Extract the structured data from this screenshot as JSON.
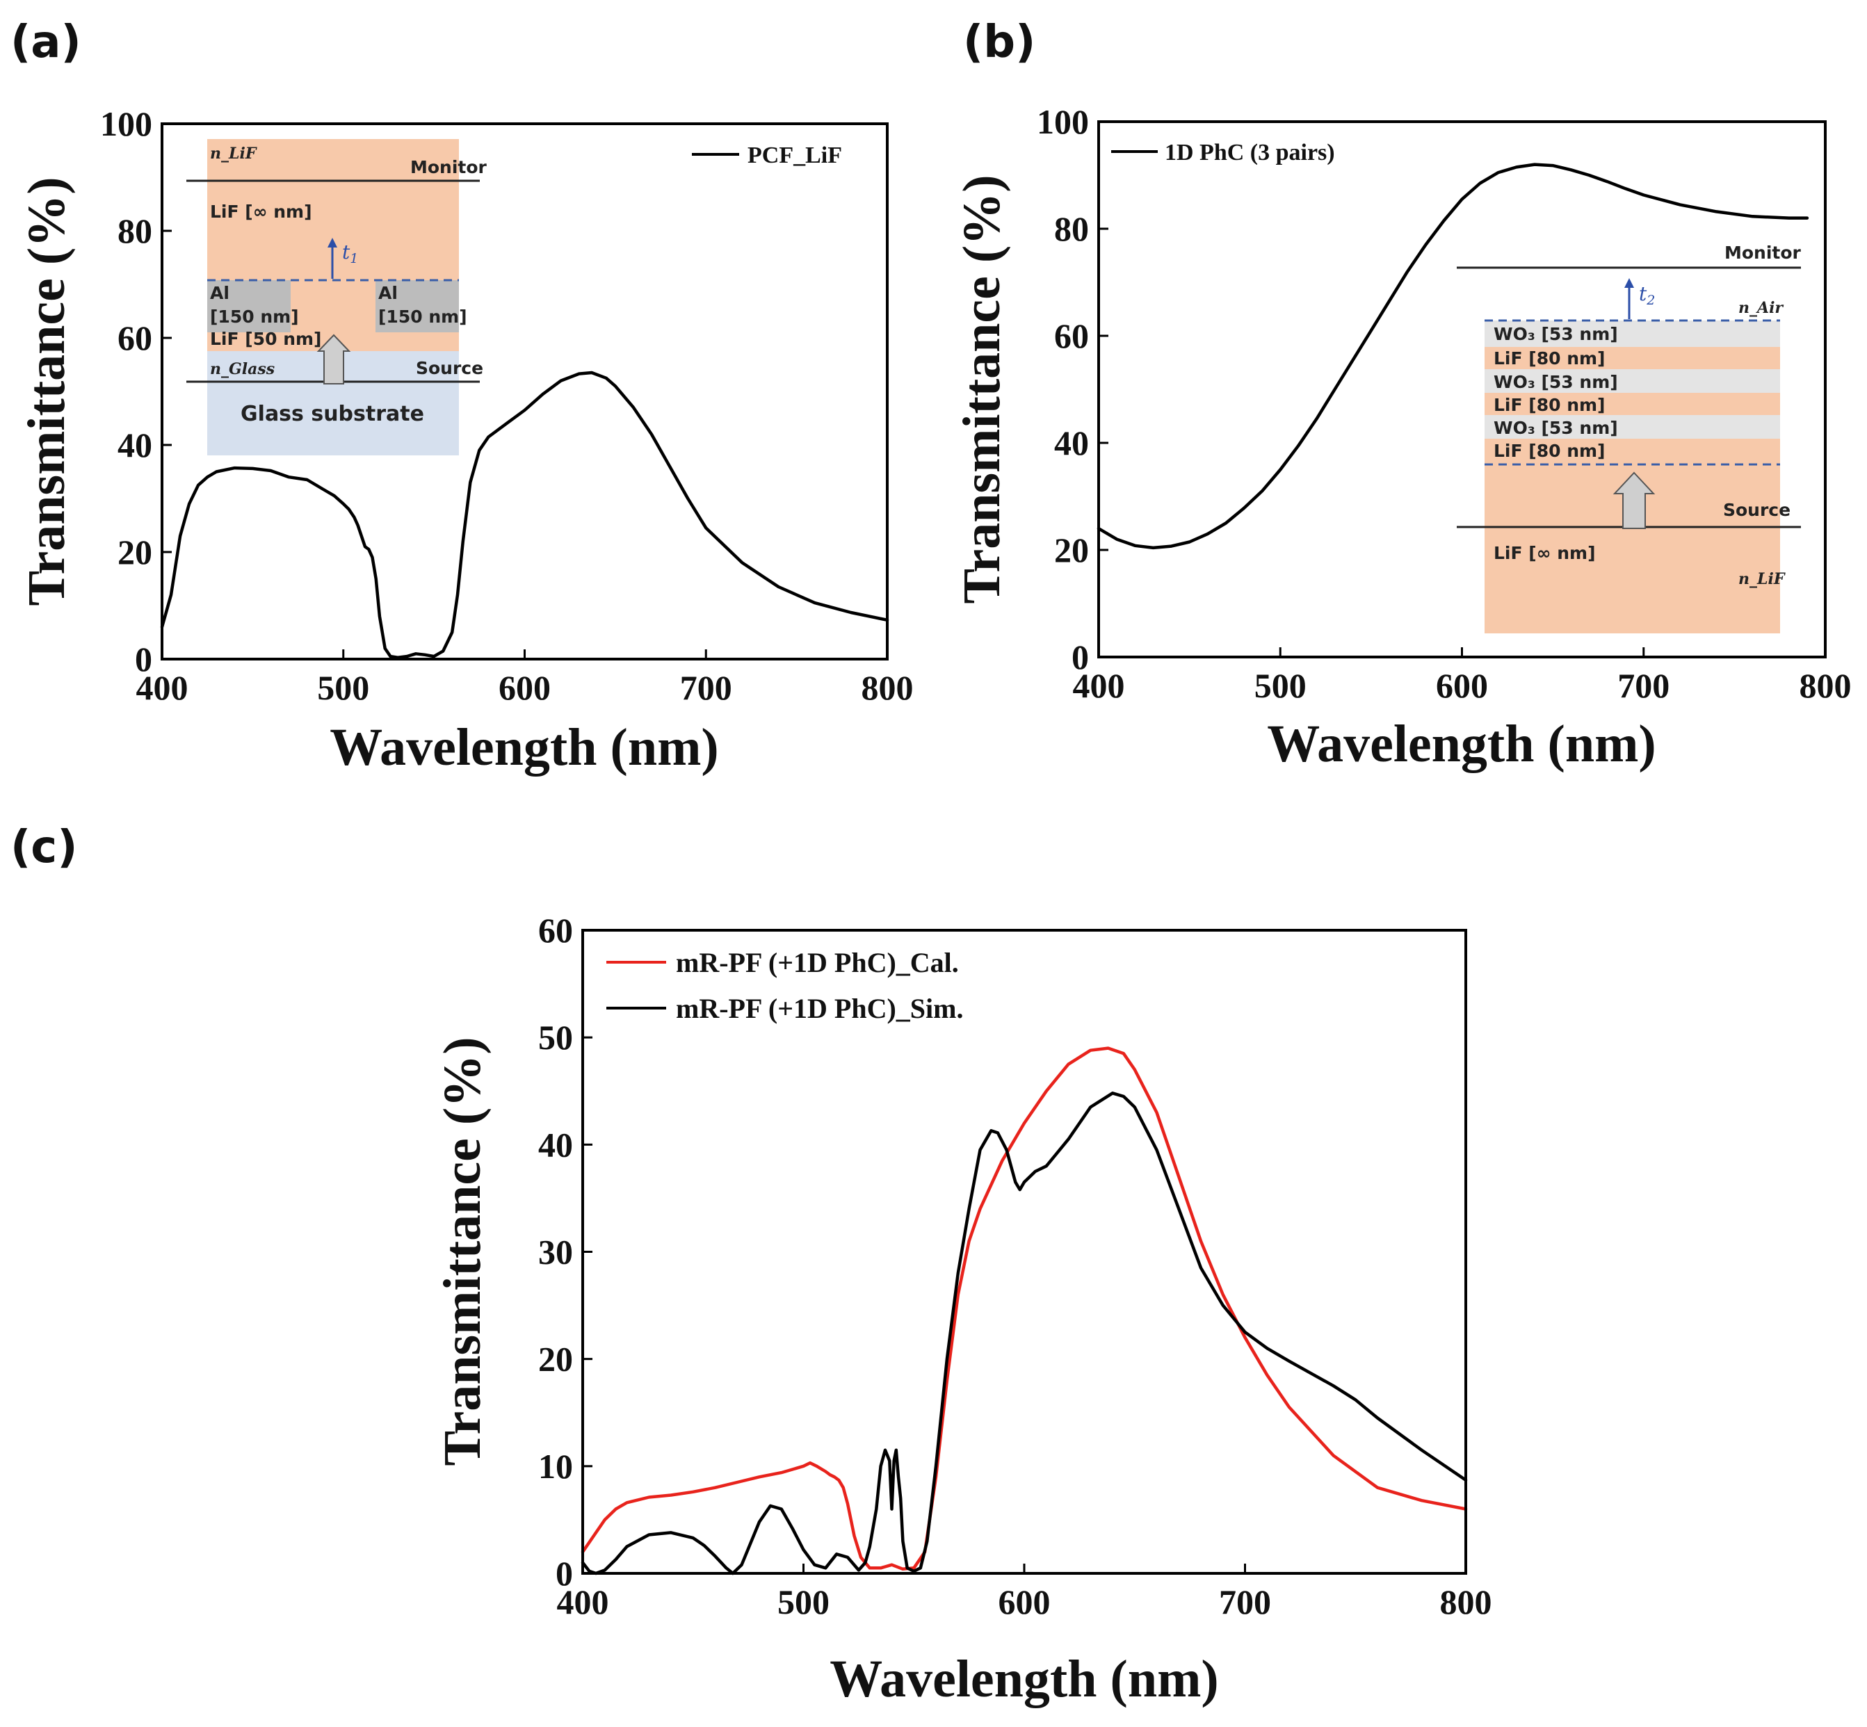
{
  "panels": {
    "a": {
      "label": "(a)"
    },
    "b": {
      "label": "(b)"
    },
    "c": {
      "label": "(c)"
    }
  },
  "colors": {
    "black": "#000000",
    "red": "#e8231c",
    "lif": "#f7c9aa",
    "al": "#bcbcbc",
    "glass": "#d6e0ee",
    "wo3": "#e4e4e4",
    "arrow": "#cfcfcf",
    "dash": "#3a5ea8"
  },
  "chart_data": [
    {
      "id": "a",
      "type": "line",
      "xlabel": "Wavelength (nm)",
      "ylabel": "Transmittance (%)",
      "xlim": [
        400,
        800
      ],
      "ylim": [
        0,
        100
      ],
      "xticks": [
        400,
        500,
        600,
        700,
        800
      ],
      "yticks": [
        0,
        20,
        40,
        60,
        80,
        100
      ],
      "legend_position": "top-right",
      "series": [
        {
          "name": "PCF_LiF",
          "color": "#000000",
          "x": [
            400,
            405,
            410,
            415,
            420,
            425,
            430,
            440,
            450,
            460,
            470,
            480,
            490,
            495,
            500,
            503,
            506,
            508,
            510,
            512,
            514,
            516,
            518,
            520,
            523,
            526,
            530,
            535,
            540,
            545,
            550,
            555,
            560,
            563,
            566,
            570,
            575,
            580,
            590,
            600,
            610,
            620,
            630,
            637,
            645,
            650,
            660,
            670,
            680,
            690,
            700,
            720,
            740,
            760,
            780,
            800
          ],
          "y": [
            6,
            12,
            23,
            29,
            32.5,
            34,
            35,
            35.7,
            35.6,
            35.2,
            34,
            33.5,
            31.5,
            30.5,
            29,
            28,
            26.5,
            25,
            23,
            21,
            20.5,
            19,
            15,
            8,
            2,
            0.5,
            0.3,
            0.5,
            1,
            0.8,
            0.5,
            1.5,
            5,
            12,
            22,
            33,
            39,
            41.5,
            44,
            46.5,
            49.5,
            52,
            53.3,
            53.5,
            52.5,
            51,
            47,
            42,
            36,
            30,
            24.5,
            18,
            13.5,
            10.5,
            8.7,
            7.3
          ]
        }
      ],
      "inset": {
        "n_top": "n_LiF",
        "monitor": "Monitor",
        "lif_top": "LiF [∞ nm]",
        "t": "t",
        "t_sub": "1",
        "al_left_1": "Al",
        "al_left_2": "[150 nm]",
        "al_right_1": "Al",
        "al_right_2": "[150 nm]",
        "lif_mid": "LiF [50 nm]",
        "n_glass": "n_Glass",
        "source": "Source",
        "glass": "Glass substrate"
      }
    },
    {
      "id": "b",
      "type": "line",
      "xlabel": "Wavelength (nm)",
      "ylabel": "Transmittance (%)",
      "xlim": [
        400,
        800
      ],
      "ylim": [
        0,
        100
      ],
      "xticks": [
        400,
        500,
        600,
        700,
        800
      ],
      "yticks": [
        0,
        20,
        40,
        60,
        80,
        100
      ],
      "legend_position": "top-left",
      "series": [
        {
          "name": "1D PhC (3 pairs)",
          "color": "#000000",
          "x": [
            400,
            410,
            420,
            430,
            440,
            450,
            460,
            470,
            480,
            490,
            500,
            510,
            520,
            530,
            540,
            550,
            560,
            570,
            580,
            590,
            600,
            610,
            620,
            630,
            640,
            650,
            660,
            670,
            680,
            690,
            700,
            720,
            740,
            760,
            780,
            790
          ],
          "y": [
            24,
            22,
            20.8,
            20.4,
            20.7,
            21.5,
            23,
            25,
            27.8,
            31,
            35,
            39.5,
            44.5,
            50,
            55.5,
            61,
            66.5,
            72,
            77,
            81.5,
            85.5,
            88.5,
            90.5,
            91.5,
            92,
            91.8,
            91,
            90,
            88.8,
            87.5,
            86.3,
            84.5,
            83.2,
            82.3,
            82,
            82
          ]
        }
      ],
      "inset": {
        "monitor": "Monitor",
        "t": "t",
        "t_sub": "2",
        "n_air": "n_Air",
        "layers": [
          "WO₃ [53 nm]",
          "LiF [80 nm]",
          "WO₃ [53 nm]",
          "LiF [80 nm]",
          "WO₃ [53 nm]",
          "LiF [80 nm]"
        ],
        "source": "Source",
        "lif_bottom": "LiF [∞ nm]",
        "n_lif": "n_LiF"
      }
    },
    {
      "id": "c",
      "type": "line",
      "xlabel": "Wavelength (nm)",
      "ylabel": "Transmittance (%)",
      "xlim": [
        400,
        800
      ],
      "ylim": [
        0,
        60
      ],
      "xticks": [
        400,
        500,
        600,
        700,
        800
      ],
      "yticks": [
        0,
        10,
        20,
        30,
        40,
        50,
        60
      ],
      "legend_position": "top-left",
      "series": [
        {
          "name": "mR-PF (+1D PhC)_Cal.",
          "color": "#e8231c",
          "x": [
            400,
            405,
            410,
            415,
            420,
            430,
            440,
            450,
            460,
            470,
            480,
            490,
            495,
            500,
            503,
            506,
            510,
            512,
            514,
            516,
            518,
            520,
            523,
            526,
            530,
            535,
            540,
            545,
            550,
            555,
            560,
            565,
            570,
            575,
            580,
            590,
            600,
            610,
            620,
            630,
            638,
            645,
            650,
            660,
            670,
            680,
            690,
            700,
            710,
            720,
            740,
            760,
            780,
            800
          ],
          "y": [
            2,
            3.5,
            5,
            6,
            6.6,
            7.1,
            7.3,
            7.6,
            8,
            8.5,
            9,
            9.4,
            9.7,
            10,
            10.3,
            10,
            9.5,
            9.2,
            9,
            8.7,
            8,
            6.5,
            3.5,
            1.5,
            0.5,
            0.5,
            0.8,
            0.4,
            0.5,
            2,
            9,
            18,
            26,
            31,
            34,
            38.5,
            42,
            45,
            47.5,
            48.8,
            49,
            48.5,
            47,
            43,
            37,
            31,
            26,
            22,
            18.5,
            15.5,
            11,
            8,
            6.8,
            6
          ]
        },
        {
          "name": "mR-PF (+1D PhC)_Sim.",
          "color": "#000000",
          "x": [
            400,
            403,
            406,
            410,
            415,
            420,
            430,
            440,
            450,
            455,
            460,
            465,
            468,
            472,
            476,
            480,
            485,
            490,
            495,
            500,
            505,
            510,
            515,
            520,
            525,
            528,
            530,
            533,
            535,
            537,
            539,
            540,
            541,
            542,
            543,
            544,
            545,
            547,
            550,
            553,
            556,
            560,
            565,
            570,
            575,
            580,
            585,
            588,
            592,
            596,
            598,
            600,
            605,
            610,
            620,
            630,
            640,
            645,
            650,
            660,
            670,
            680,
            690,
            700,
            710,
            720,
            740,
            750,
            760,
            780,
            800
          ],
          "y": [
            1,
            0.2,
            0,
            0.3,
            1.3,
            2.5,
            3.6,
            3.8,
            3.3,
            2.6,
            1.6,
            0.5,
            0,
            0.8,
            2.8,
            4.8,
            6.3,
            6,
            4.2,
            2.2,
            0.8,
            0.5,
            1.8,
            1.5,
            0.3,
            1,
            2.5,
            6,
            10,
            11.5,
            10.5,
            6,
            10.5,
            11.5,
            9,
            7,
            3,
            0.5,
            0.2,
            0.5,
            3,
            10,
            20,
            28,
            34,
            39.5,
            41.3,
            41.1,
            39.5,
            36.5,
            35.8,
            36.5,
            37.5,
            38,
            40.5,
            43.5,
            44.8,
            44.5,
            43.5,
            39.5,
            34,
            28.5,
            25,
            22.5,
            21,
            19.8,
            17.5,
            16.2,
            14.5,
            11.5,
            8.7
          ]
        }
      ]
    }
  ]
}
